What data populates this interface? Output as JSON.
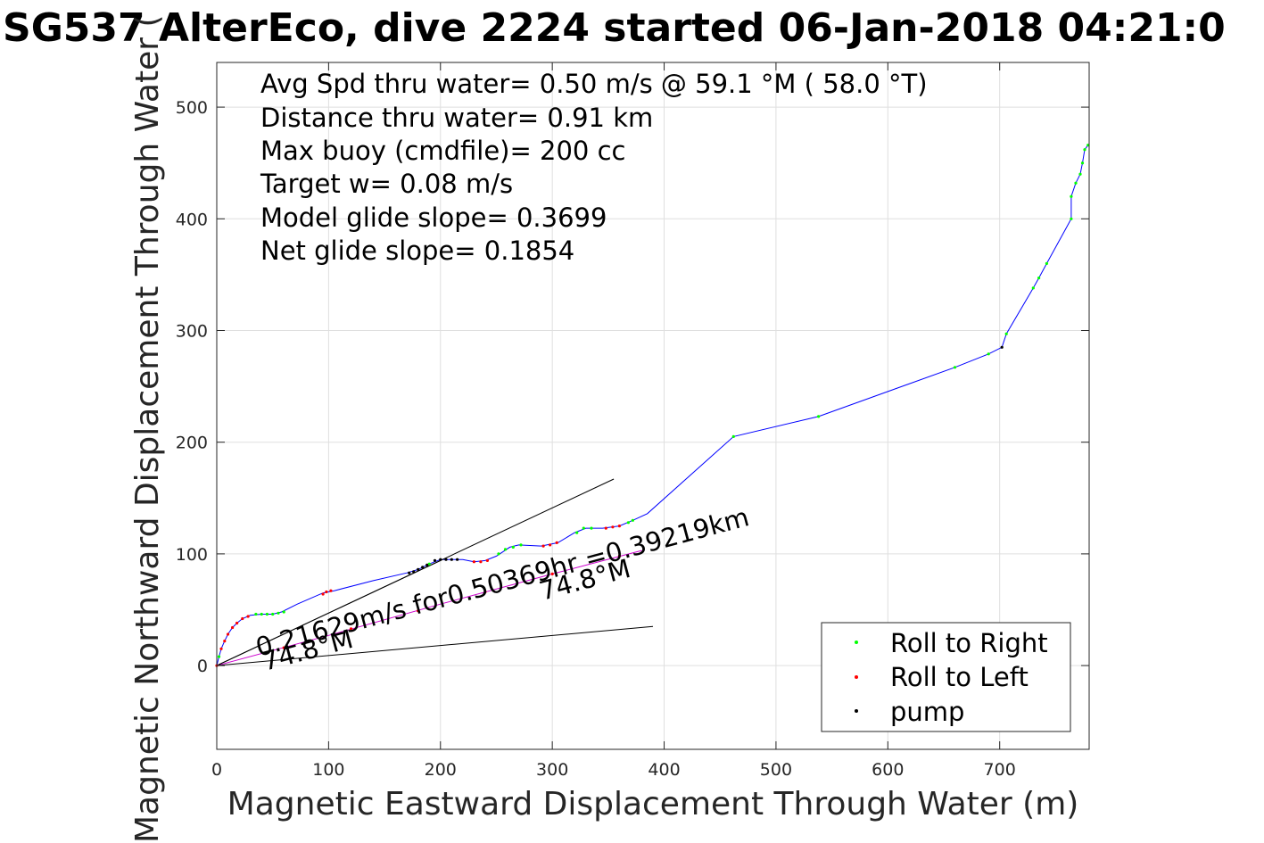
{
  "chart_data": {
    "type": "line",
    "title": "SG537 AlterEco, dive 2224 started 06-Jan-2018 04:21:0",
    "xlabel": "Magnetic Eastward Displacement Through Water (m)",
    "ylabel": "Magnetic Northward Displacement Through Water (",
    "xlim": [
      0,
      780
    ],
    "ylim": [
      -75,
      540
    ],
    "xticks": [
      0,
      100,
      200,
      300,
      400,
      500,
      600,
      700
    ],
    "yticks": [
      0,
      100,
      200,
      300,
      400,
      500
    ],
    "grid": true,
    "legend_position": "bottom-right",
    "annotations": [
      "Avg Spd thru water=  0.50 m/s @  59.1 °M ( 58.0 °T)",
      "Distance thru water=  0.91 km",
      "Max buoy (cmdfile)= 200 cc",
      "Target w= 0.08 m/s",
      "Model glide slope= 0.3699",
      "Net glide slope= 0.1854"
    ],
    "current_label": "0.21629m/s for0.50369hr =0.39219km",
    "heading_label": "74.8°M",
    "series": [
      {
        "type": "line",
        "color": "#0000ff",
        "points": [
          [
            0,
            0
          ],
          [
            2,
            8
          ],
          [
            4,
            15
          ],
          [
            7,
            22
          ],
          [
            10,
            28
          ],
          [
            14,
            34
          ],
          [
            18,
            38
          ],
          [
            23,
            42
          ],
          [
            30,
            45
          ],
          [
            40,
            46
          ],
          [
            50,
            46
          ],
          [
            58,
            48
          ],
          [
            72,
            55
          ],
          [
            95,
            65
          ],
          [
            105,
            67
          ],
          [
            140,
            76
          ],
          [
            170,
            83
          ],
          [
            180,
            86
          ],
          [
            190,
            91
          ],
          [
            200,
            95
          ],
          [
            210,
            95
          ],
          [
            220,
            95
          ],
          [
            230,
            93
          ],
          [
            240,
            94
          ],
          [
            250,
            98
          ],
          [
            262,
            106
          ],
          [
            270,
            108
          ],
          [
            290,
            107
          ],
          [
            305,
            110
          ],
          [
            320,
            119
          ],
          [
            330,
            123
          ],
          [
            345,
            123
          ],
          [
            360,
            125
          ],
          [
            372,
            130
          ],
          [
            385,
            136
          ],
          [
            462,
            205
          ],
          [
            538,
            223
          ],
          [
            660,
            267
          ],
          [
            690,
            279
          ],
          [
            702,
            285
          ],
          [
            706,
            297
          ],
          [
            730,
            338
          ],
          [
            735,
            347
          ],
          [
            742,
            360
          ],
          [
            764,
            400
          ],
          [
            764,
            420
          ],
          [
            768,
            432
          ],
          [
            772,
            440
          ],
          [
            774,
            450
          ],
          [
            776,
            462
          ],
          [
            779,
            466
          ]
        ]
      },
      {
        "type": "line",
        "color": "#cc00cc",
        "points": [
          [
            0,
            0
          ],
          [
            100,
            27
          ],
          [
            200,
            55
          ],
          [
            300,
            82
          ],
          [
            380,
            103
          ]
        ]
      },
      {
        "type": "line",
        "color": "#000000",
        "points": [
          [
            0,
            0
          ],
          [
            355,
            167
          ]
        ]
      },
      {
        "type": "line",
        "color": "#000000",
        "points": [
          [
            0,
            0
          ],
          [
            390,
            35
          ]
        ]
      },
      {
        "type": "line",
        "color": "#000000",
        "points": [
          [
            0,
            0
          ],
          [
            200,
            94
          ]
        ]
      },
      {
        "name": "Roll to Right",
        "type": "scatter",
        "color": "#00ff00",
        "points": [
          [
            2,
            8
          ],
          [
            35,
            46
          ],
          [
            40,
            46
          ],
          [
            45,
            46
          ],
          [
            50,
            46
          ],
          [
            55,
            47
          ],
          [
            60,
            48
          ],
          [
            190,
            91
          ],
          [
            252,
            100
          ],
          [
            258,
            104
          ],
          [
            265,
            106
          ],
          [
            272,
            108
          ],
          [
            322,
            119
          ],
          [
            328,
            123
          ],
          [
            335,
            123
          ],
          [
            368,
            128
          ],
          [
            372,
            130
          ],
          [
            462,
            205
          ],
          [
            538,
            223
          ],
          [
            660,
            267
          ],
          [
            690,
            279
          ],
          [
            706,
            297
          ],
          [
            730,
            338
          ],
          [
            735,
            347
          ],
          [
            742,
            360
          ],
          [
            764,
            400
          ],
          [
            764,
            420
          ],
          [
            768,
            432
          ],
          [
            772,
            440
          ],
          [
            774,
            450
          ],
          [
            776,
            462
          ],
          [
            779,
            466
          ]
        ]
      },
      {
        "name": "Roll to Left",
        "type": "scatter",
        "color": "#ff0000",
        "points": [
          [
            0,
            0
          ],
          [
            4,
            15
          ],
          [
            7,
            22
          ],
          [
            10,
            28
          ],
          [
            14,
            34
          ],
          [
            18,
            38
          ],
          [
            23,
            42
          ],
          [
            28,
            44
          ],
          [
            95,
            64
          ],
          [
            98,
            66
          ],
          [
            102,
            67
          ],
          [
            230,
            93
          ],
          [
            236,
            93
          ],
          [
            242,
            94
          ],
          [
            292,
            107
          ],
          [
            298,
            108
          ],
          [
            304,
            110
          ],
          [
            348,
            123
          ],
          [
            354,
            124
          ],
          [
            360,
            125
          ],
          [
            60,
            16
          ],
          [
            120,
            33
          ],
          [
            180,
            49
          ],
          [
            240,
            66
          ],
          [
            300,
            82
          ],
          [
            360,
            98
          ]
        ]
      },
      {
        "name": "pump",
        "type": "scatter",
        "color": "#000000",
        "points": [
          [
            172,
            83
          ],
          [
            176,
            84
          ],
          [
            180,
            86
          ],
          [
            184,
            88
          ],
          [
            188,
            90
          ],
          [
            195,
            94
          ],
          [
            200,
            95
          ],
          [
            205,
            95
          ],
          [
            210,
            95
          ],
          [
            215,
            95
          ],
          [
            702,
            285
          ]
        ]
      }
    ]
  }
}
